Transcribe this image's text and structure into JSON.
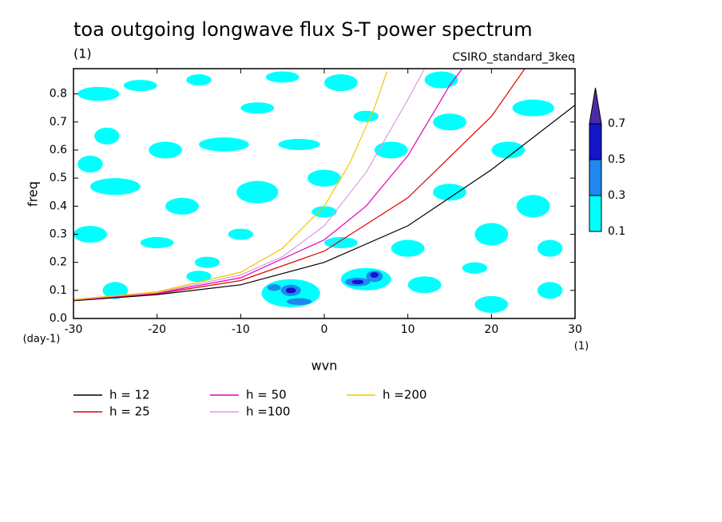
{
  "chart_data": {
    "type": "contour",
    "title": "toa outgoing longwave flux S-T power spectrum",
    "subtitle": "(1)",
    "run_label": "CSIRO_standard_3keq",
    "x_label": "wvn",
    "x_unit": "(1)",
    "y_label": "freq",
    "y_unit": "(day-1)",
    "xlim": [
      -30,
      30
    ],
    "xticks": [
      -30,
      -20,
      -10,
      0,
      10,
      20,
      30
    ],
    "ylim": [
      0,
      0.89
    ],
    "yticks": [
      {
        "value": 0,
        "label": "0.0"
      },
      0.1,
      0.2,
      0.3,
      0.4,
      0.5,
      0.6,
      0.7,
      0.8
    ],
    "levels": [
      0.1,
      0.3,
      0.5,
      0.7
    ],
    "level_colors": [
      "#00ffff",
      "#1e88f0",
      "#1414c8",
      "#4b2ca8"
    ],
    "contours": [
      {
        "level": 0.1,
        "x": [
          -27,
          -22,
          -15,
          -5,
          2,
          -26,
          -19,
          -12,
          -3,
          8,
          -25,
          -17,
          -8,
          0,
          15,
          25,
          -28,
          -20,
          -10,
          2,
          10,
          20,
          27,
          -25,
          -15,
          -4,
          5,
          12,
          20,
          27,
          15,
          25,
          -8,
          5,
          14,
          -28,
          22,
          -14,
          18,
          0
        ],
        "y": [
          0.8,
          0.83,
          0.85,
          0.86,
          0.84,
          0.65,
          0.6,
          0.62,
          0.62,
          0.6,
          0.47,
          0.4,
          0.45,
          0.5,
          0.45,
          0.4,
          0.3,
          0.27,
          0.3,
          0.27,
          0.25,
          0.3,
          0.25,
          0.1,
          0.15,
          0.09,
          0.14,
          0.12,
          0.05,
          0.1,
          0.7,
          0.75,
          0.75,
          0.72,
          0.85,
          0.55,
          0.6,
          0.2,
          0.18,
          0.38
        ],
        "rx": [
          2.5,
          2,
          1.5,
          2,
          2,
          1.5,
          2,
          3,
          2.5,
          2,
          3,
          2,
          2.5,
          2,
          2,
          2,
          2,
          2,
          1.5,
          2,
          2,
          2,
          1.5,
          1.5,
          1.5,
          3.5,
          3,
          2,
          2,
          1.5,
          2,
          2.5,
          2,
          1.5,
          2,
          1.5,
          2,
          1.5,
          1.5,
          1.5
        ],
        "ry": [
          0.025,
          0.02,
          0.02,
          0.02,
          0.03,
          0.03,
          0.03,
          0.025,
          0.02,
          0.03,
          0.03,
          0.03,
          0.04,
          0.03,
          0.03,
          0.04,
          0.03,
          0.02,
          0.02,
          0.02,
          0.03,
          0.04,
          0.03,
          0.03,
          0.02,
          0.05,
          0.04,
          0.03,
          0.03,
          0.03,
          0.03,
          0.03,
          0.02,
          0.02,
          0.03,
          0.03,
          0.03,
          0.02,
          0.02,
          0.02
        ]
      },
      {
        "level": 0.3,
        "x": [
          -4,
          -3,
          4,
          6,
          -6
        ],
        "y": [
          0.1,
          0.06,
          0.13,
          0.15,
          0.11
        ],
        "rx": [
          1.2,
          1.5,
          1.5,
          1,
          0.8
        ],
        "ry": [
          0.02,
          0.012,
          0.015,
          0.02,
          0.012
        ]
      },
      {
        "level": 0.5,
        "x": [
          -4,
          4,
          6
        ],
        "y": [
          0.1,
          0.13,
          0.155
        ],
        "rx": [
          0.6,
          0.7,
          0.5
        ],
        "ry": [
          0.01,
          0.008,
          0.01
        ]
      }
    ],
    "series": [
      {
        "name": "h = 12",
        "color": "#000000",
        "x": [
          -30,
          -20,
          -10,
          0,
          10,
          20,
          30
        ],
        "y": [
          0.063,
          0.085,
          0.12,
          0.2,
          0.33,
          0.53,
          0.76
        ]
      },
      {
        "name": "h = 25",
        "color": "#e00000",
        "x": [
          -30,
          -20,
          -10,
          0,
          10,
          20,
          24
        ],
        "y": [
          0.065,
          0.088,
          0.135,
          0.24,
          0.43,
          0.72,
          0.89
        ]
      },
      {
        "name": "h = 50",
        "color": "#e000c0",
        "x": [
          -30,
          -20,
          -10,
          0,
          5,
          10,
          15,
          16.5
        ],
        "y": [
          0.066,
          0.09,
          0.145,
          0.28,
          0.4,
          0.58,
          0.83,
          0.89
        ]
      },
      {
        "name": "h =100",
        "color": "#dc9cdc",
        "x": [
          -30,
          -20,
          -10,
          -5,
          0,
          5,
          10,
          12
        ],
        "y": [
          0.067,
          0.092,
          0.155,
          0.22,
          0.33,
          0.52,
          0.78,
          0.89
        ]
      },
      {
        "name": "h =200",
        "color": "#f0c800",
        "x": [
          -30,
          -20,
          -10,
          -5,
          0,
          3,
          6,
          7.5
        ],
        "y": [
          0.068,
          0.095,
          0.165,
          0.25,
          0.4,
          0.55,
          0.75,
          0.88
        ]
      }
    ]
  }
}
